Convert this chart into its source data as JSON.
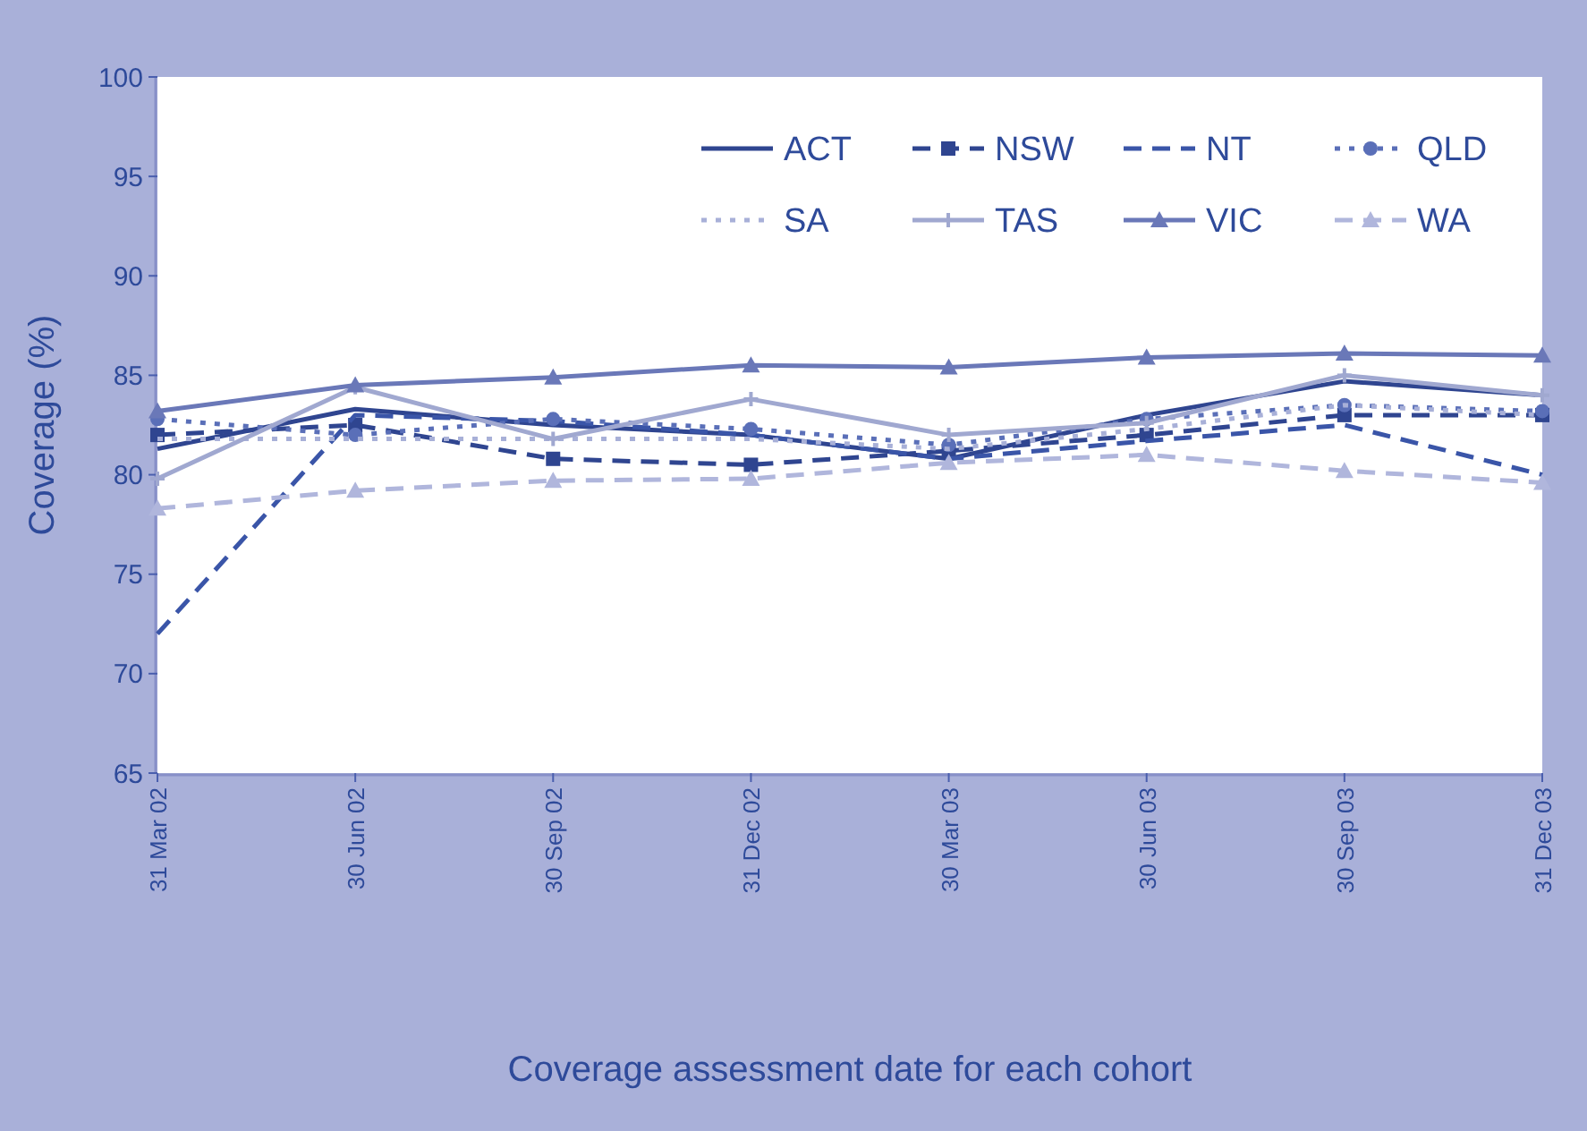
{
  "chart_data": {
    "type": "line",
    "xlabel": "Coverage assessment date for each cohort",
    "ylabel": "Coverage (%)",
    "categories": [
      "31 Mar 02",
      "30 Jun 02",
      "30 Sep 02",
      "31 Dec 02",
      "30 Mar 03",
      "30 Jun 03",
      "30 Sep 03",
      "31 Dec 03"
    ],
    "ylim": [
      65,
      100
    ],
    "yticks": [
      65,
      70,
      75,
      80,
      85,
      90,
      95,
      100
    ],
    "legend": "top right",
    "grid": false,
    "series": [
      {
        "name": "ACT",
        "color": "#2f4590",
        "line_style": "solid",
        "marker": "none",
        "values": [
          81.3,
          83.3,
          82.5,
          82.0,
          80.8,
          83.0,
          84.7,
          84.0
        ]
      },
      {
        "name": "NSW",
        "color": "#2f4590",
        "line_style": "dashed",
        "marker": "square",
        "values": [
          82.0,
          82.5,
          80.8,
          80.5,
          81.2,
          82.0,
          83.0,
          83.0
        ]
      },
      {
        "name": "NT",
        "color": "#3a55a8",
        "line_style": "dashed",
        "marker": "none",
        "values": [
          72.0,
          83.0,
          82.7,
          82.0,
          80.8,
          81.7,
          82.5,
          80.0
        ]
      },
      {
        "name": "QLD",
        "color": "#5a6fb8",
        "line_style": "dotted",
        "marker": "circle",
        "values": [
          82.8,
          82.0,
          82.8,
          82.3,
          81.5,
          82.8,
          83.5,
          83.2
        ]
      },
      {
        "name": "SA",
        "color": "#a8b0d8",
        "line_style": "dotted",
        "marker": "none",
        "values": [
          81.8,
          81.8,
          81.8,
          81.8,
          81.3,
          82.3,
          83.5,
          83.0
        ]
      },
      {
        "name": "TAS",
        "color": "#a0a8d0",
        "line_style": "solid",
        "marker": "cross",
        "values": [
          79.8,
          84.4,
          81.8,
          83.8,
          82.0,
          82.6,
          85.0,
          84.0
        ]
      },
      {
        "name": "VIC",
        "color": "#6a78b8",
        "line_style": "solid",
        "marker": "triangle",
        "values": [
          83.2,
          84.5,
          84.9,
          85.5,
          85.4,
          85.9,
          86.1,
          86.0
        ]
      },
      {
        "name": "WA",
        "color": "#b0b6dc",
        "line_style": "dashed",
        "marker": "triangle",
        "values": [
          78.3,
          79.2,
          79.7,
          79.8,
          80.6,
          81.0,
          80.2,
          79.6
        ]
      }
    ]
  }
}
